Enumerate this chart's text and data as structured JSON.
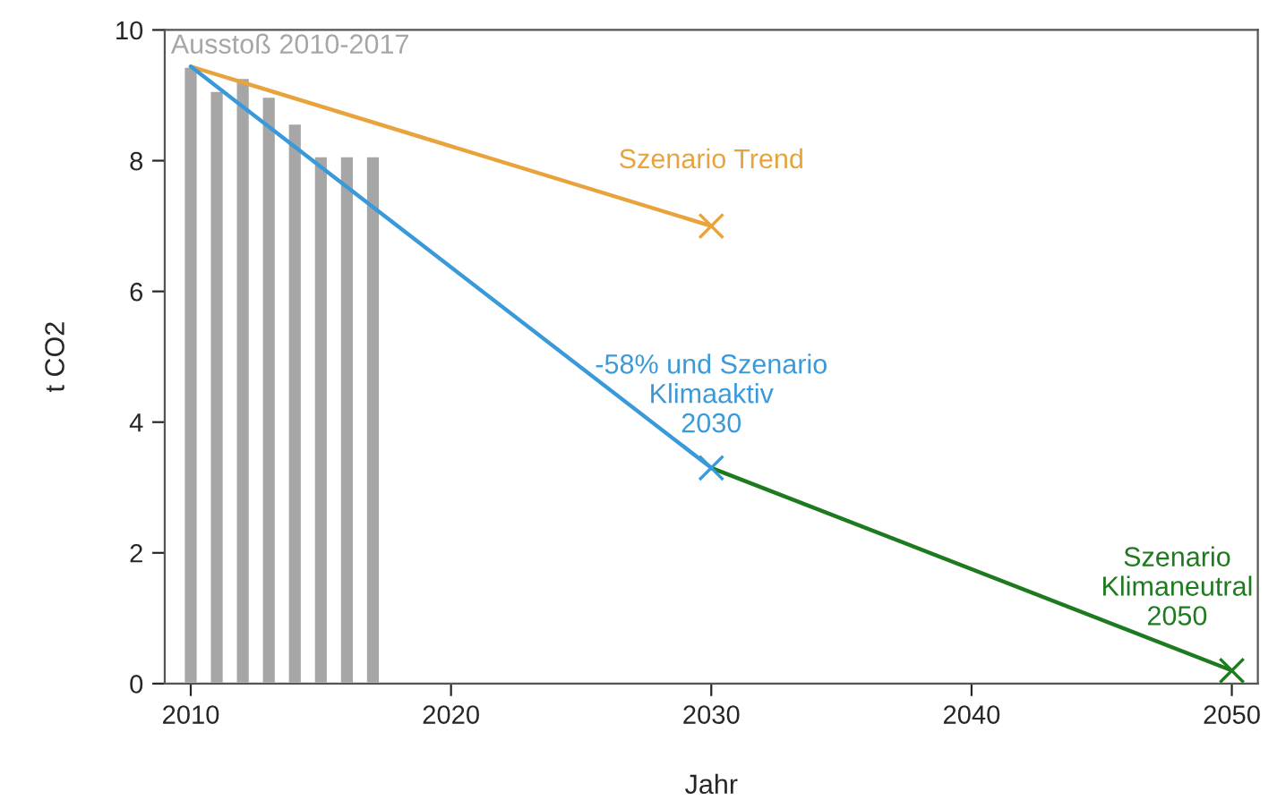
{
  "chart_data": {
    "type": "line",
    "xlabel": "Jahr",
    "ylabel": "t CO2",
    "xlim": [
      2009,
      2051
    ],
    "ylim": [
      0,
      10
    ],
    "xticks": [
      2010,
      2020,
      2030,
      2040,
      2050
    ],
    "yticks": [
      0,
      2,
      4,
      6,
      8,
      10
    ],
    "legend": false,
    "line_style": "solid",
    "series": [
      {
        "type": "bar",
        "name": "Ausstoß 2010-2017",
        "color": "#a6a6a6",
        "x": [
          2010,
          2011,
          2012,
          2013,
          2014,
          2015,
          2016,
          2017
        ],
        "values": [
          9.44,
          9.07,
          9.27,
          8.98,
          8.57,
          8.07,
          8.07,
          8.07
        ]
      },
      {
        "name": "Szenario Trend",
        "color": "#e8a33d",
        "x": [
          2010,
          2030
        ],
        "values": [
          9.44,
          7.0
        ]
      },
      {
        "name": "-58% und Szenario\nKlimaaktiv\n2030",
        "color": "#3a9ad9",
        "x": [
          2010,
          2030
        ],
        "values": [
          9.44,
          3.3
        ]
      },
      {
        "name": "Szenario\nKlimaneutral\n2050",
        "color": "#1e7a1e",
        "x": [
          2030,
          2050
        ],
        "values": [
          3.3,
          0.2
        ]
      },
      {
        "type": "scatter",
        "marker": "cross",
        "colors": [
          "#e8a33d",
          "#3a9ad9",
          "#1e7a1e"
        ],
        "x": [
          2030,
          2030,
          2050
        ],
        "values": [
          7.0,
          3.3,
          0.2
        ]
      }
    ]
  }
}
